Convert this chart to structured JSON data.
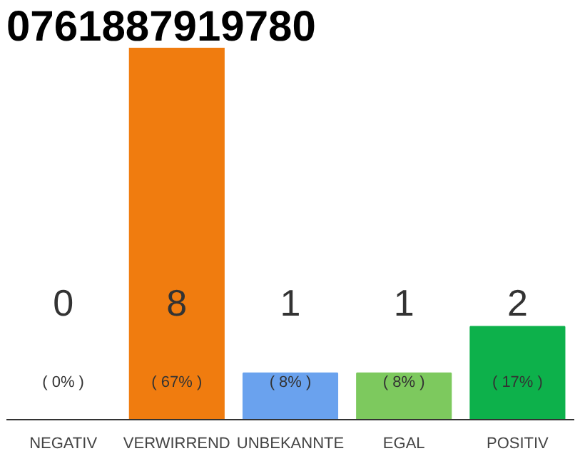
{
  "chart_data": {
    "type": "bar",
    "title": "0761887919780",
    "categories": [
      "NEGATIV",
      "VERWIRREND",
      "UNBEKANNTE",
      "EGAL",
      "POSITIV"
    ],
    "values": [
      0,
      8,
      1,
      1,
      2
    ],
    "colors": [
      "#e53935",
      "#f07c0f",
      "#6aa2ee",
      "#7dc95e",
      "#0db14b"
    ],
    "value_labels": [
      "0",
      "8",
      "1",
      "1",
      "2"
    ],
    "annotations": [
      "( 0% )",
      "( 67% )",
      "( 8% )",
      "( 8% )",
      "( 17% )"
    ],
    "tick_labels": "x",
    "grid": false
  }
}
